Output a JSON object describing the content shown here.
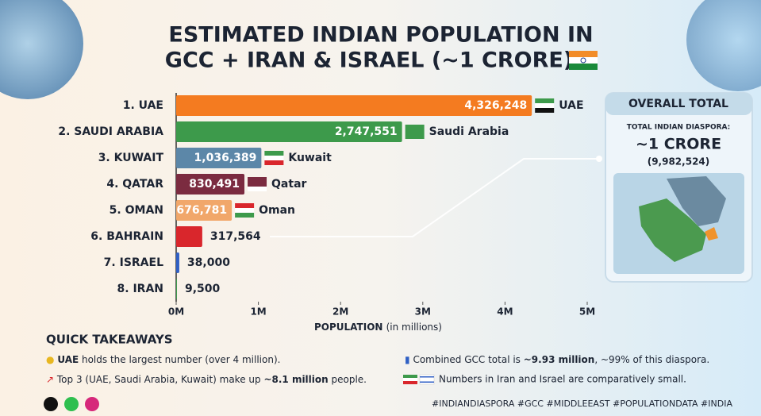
{
  "chart_data": {
    "type": "barh",
    "title_lines": [
      "ESTIMATED INDIAN POPULATION IN",
      "GCC + IRAN & ISRAEL (~1 CRORE)"
    ],
    "categories": [
      "1. UAE",
      "2. SAUDI ARABIA",
      "3. KUWAIT",
      "4. QATAR",
      "5. OMAN",
      "6. BAHRAIN",
      "7. ISRAEL",
      "8. IRAN"
    ],
    "values": [
      4326248,
      2747551,
      1036389,
      830491,
      676781,
      317564,
      38000,
      9500
    ],
    "value_labels": [
      "4,326,248",
      "2,747,551",
      "1,036,389",
      "830,491",
      "676,781",
      "317,564",
      "38,000",
      "9,500"
    ],
    "bar_names": [
      "UAE",
      "Saudi Arabia",
      "Kuwait",
      "Qatar",
      "Oman",
      null,
      null,
      null
    ],
    "colors": [
      "#f47b20",
      "#3d9a4b",
      "#5c87a8",
      "#7b2b40",
      "#f1a76a",
      "#d9262c",
      "#2f5fc4",
      "#3d9a4b"
    ],
    "xlim": [
      0,
      5000000
    ],
    "xticks": [
      {
        "value": 0,
        "label": "0M"
      },
      {
        "value": 1000000,
        "label": "1M"
      },
      {
        "value": 2000000,
        "label": "2M"
      },
      {
        "value": 3000000,
        "label": "3M"
      },
      {
        "value": 4000000,
        "label": "4M"
      },
      {
        "value": 5000000,
        "label": "5M"
      }
    ],
    "xlabel": "POPULATION",
    "xlabel_note": "(in millions)"
  },
  "total_box": {
    "title": "OVERALL TOTAL",
    "subtitle": "TOTAL INDIAN DIASPORA:",
    "headline": "~1 CRORE",
    "detail": "(9,982,524)"
  },
  "takeaways": {
    "title": "QUICK TAKEAWAYS",
    "items": [
      [
        "UAE",
        " holds the largest number (over 4 million)."
      ],
      [
        "Top 3 (UAE, Saudi Arabia, Kuwait) make up ",
        "~8.1 million",
        " people."
      ],
      [
        "Combined GCC total is ",
        "~9.93 million",
        ", ~99% of this diaspora."
      ],
      [
        "Numbers in Iran and Israel are comparatively small."
      ]
    ]
  },
  "hashtags": "#INDIANDIASPORA #GCC #MIDDLEEAST #POPULATIONDATA #INDIA"
}
